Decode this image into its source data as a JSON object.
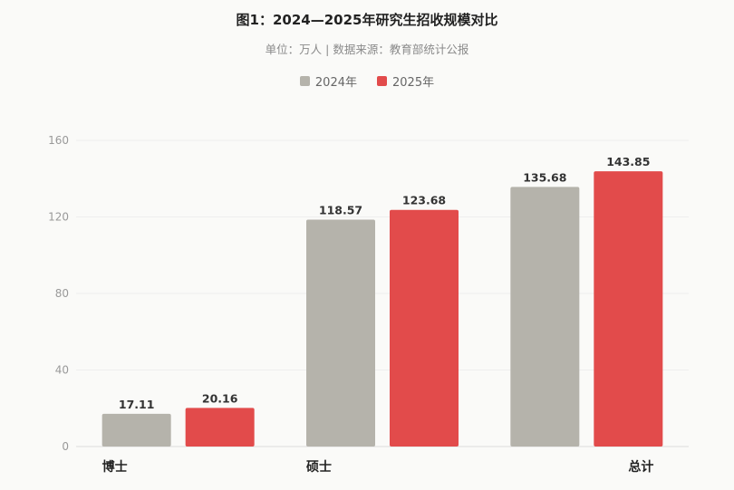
{
  "chart_data": {
    "type": "bar",
    "title": "图1：2024—2025年研究生招收规模对比",
    "subtitle": "单位：万人 | 数据来源：教育部统计公报",
    "categories": [
      "博士",
      "硕士",
      "总计"
    ],
    "series": [
      {
        "name": "2024年",
        "color": "#b5b3ab",
        "values": [
          17.11,
          118.57,
          135.68
        ]
      },
      {
        "name": "2025年",
        "color": "#e24b4b",
        "values": [
          20.16,
          123.68,
          143.85
        ]
      }
    ],
    "ylim": [
      0,
      160
    ],
    "yticks": [
      0,
      40,
      80,
      120,
      160
    ],
    "grid": true,
    "legend": "top-center"
  }
}
